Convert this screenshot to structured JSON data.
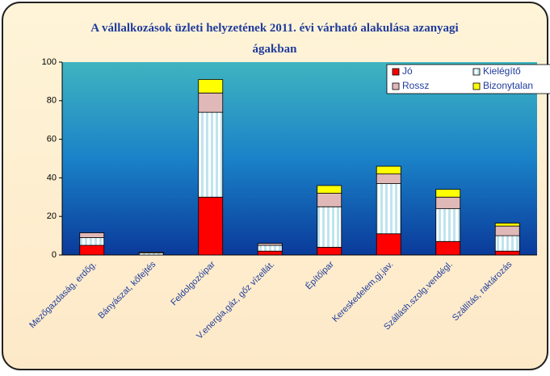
{
  "chart_data": {
    "type": "stacked-bar",
    "title": "A vállalkozások üzleti helyzetének 2011. évi várható alakulása azanyagi ágakban",
    "categories": [
      "Mezőgazdaság, erdőg.",
      "Bányászat, kőfejtés",
      "Feldolgozóipar",
      "V.energia,gáz, gőz vízellát.",
      "Építőipar",
      "Kereskedelem,gj.jav.",
      "Szállásh.szolg.vendégl.",
      "Szállítás, raktározás"
    ],
    "series": [
      {
        "name": "Jó",
        "color": "#ff0000",
        "values": [
          5,
          0,
          30,
          2,
          4,
          11,
          7,
          2
        ]
      },
      {
        "name": "Kielégítő",
        "color": "#bfe4ee",
        "values": [
          4,
          1,
          44,
          3,
          21,
          26,
          17,
          8
        ]
      },
      {
        "name": "Rossz",
        "color": "#e0b8b8",
        "values": [
          2.5,
          0.5,
          10,
          1,
          7,
          5,
          6,
          5
        ]
      },
      {
        "name": "Bizonytalan",
        "color": "#ffff00",
        "values": [
          0,
          0,
          7,
          0,
          4,
          4,
          4,
          1.5
        ]
      }
    ],
    "ylim": [
      0,
      100
    ],
    "yticks": [
      0,
      20,
      40,
      60,
      80,
      100
    ],
    "legend": "top-right"
  }
}
